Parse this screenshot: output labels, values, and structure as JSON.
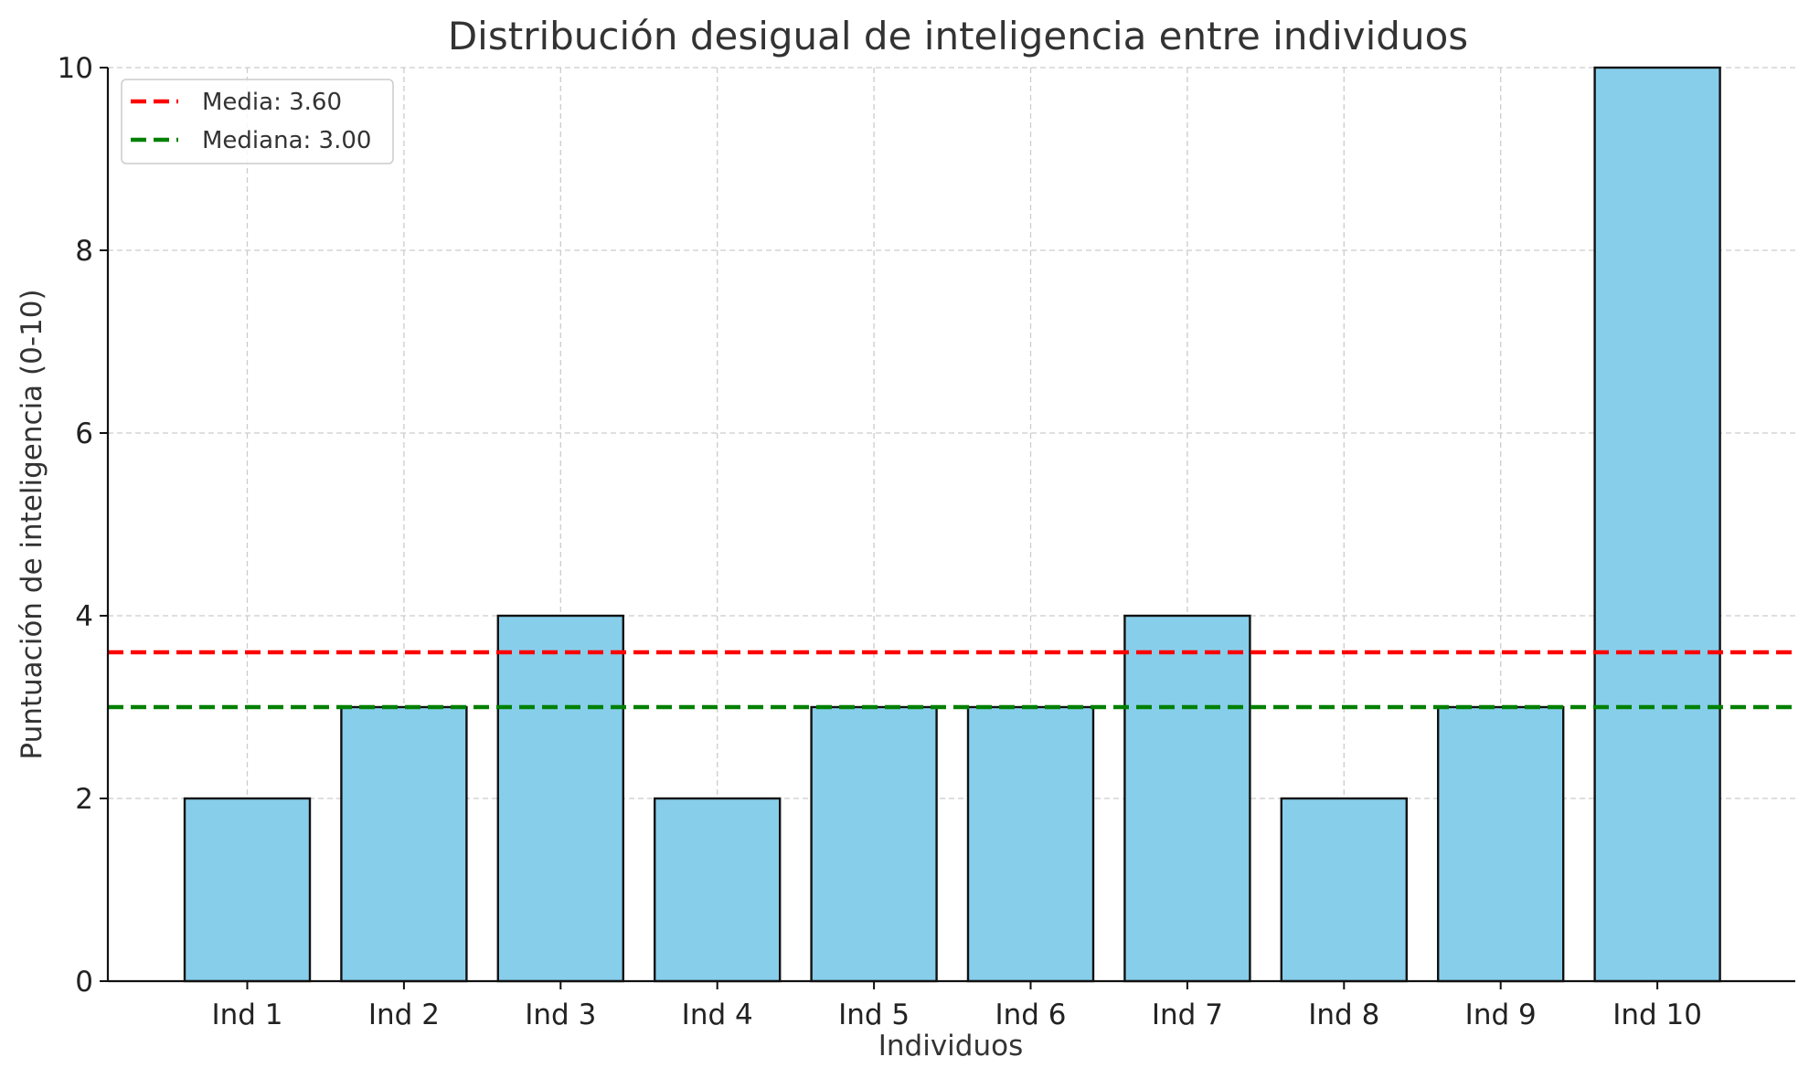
{
  "chart_data": {
    "type": "bar",
    "title": "Distribución desigual de inteligencia entre individuos",
    "xlabel": "Individuos",
    "ylabel": "Puntuación de inteligencia (0-10)",
    "categories": [
      "Ind 1",
      "Ind 2",
      "Ind 3",
      "Ind 4",
      "Ind 5",
      "Ind 6",
      "Ind 7",
      "Ind 8",
      "Ind 9",
      "Ind 10"
    ],
    "values": [
      2,
      3,
      4,
      2,
      3,
      3,
      4,
      2,
      3,
      10
    ],
    "ylim": [
      0,
      10
    ],
    "yticks": [
      0,
      2,
      4,
      6,
      8,
      10
    ],
    "grid": true,
    "bar_color": "#87ceeb",
    "reference_lines": [
      {
        "label": "Media: 3.60",
        "value": 3.6,
        "color": "#ff0000"
      },
      {
        "label": "Mediana: 3.00",
        "value": 3.0,
        "color": "#008000"
      }
    ],
    "legend_position": "top-left"
  }
}
